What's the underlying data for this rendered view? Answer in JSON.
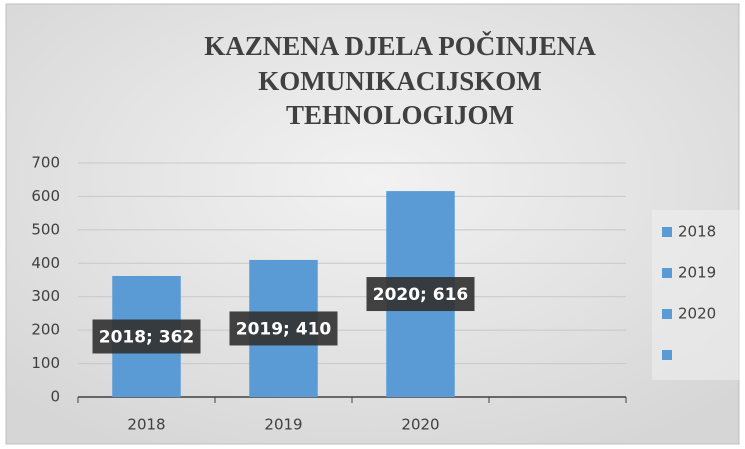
{
  "chart_data": {
    "type": "bar",
    "title": [
      "KAZNENA DJELA POČINJENA",
      "KOMUNIKACIJSKOM",
      "TEHNOLOGIJOM"
    ],
    "categories": [
      "2018",
      "2019",
      "2020",
      null
    ],
    "values": [
      362,
      410,
      616,
      null
    ],
    "value_labels": [
      "2018; 362",
      "2019; 410",
      "2020; 616",
      null
    ],
    "color": "#5b9bd5",
    "ylim": [
      0,
      700
    ],
    "yticks": [
      0,
      100,
      200,
      300,
      400,
      500,
      600,
      700
    ],
    "grid": true,
    "legend": "right"
  }
}
